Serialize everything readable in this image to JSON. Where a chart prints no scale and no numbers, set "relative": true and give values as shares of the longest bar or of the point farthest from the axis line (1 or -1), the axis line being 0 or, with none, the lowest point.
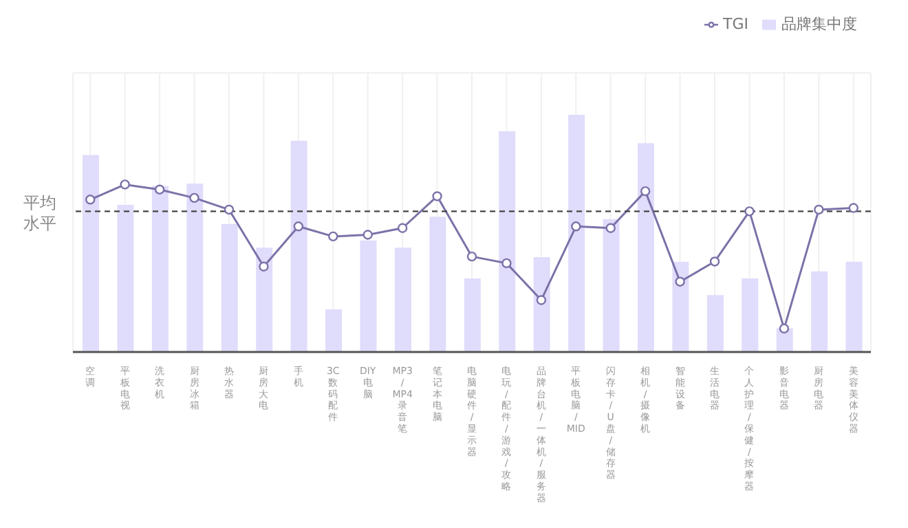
{
  "chart_data": {
    "type": "bar",
    "relative": true,
    "categories": [
      "空调",
      "平板电视",
      "洗衣机",
      "厨房冰箱",
      "热水器",
      "厨房大电",
      "手机",
      "3C数码配件",
      "DIY电脑",
      "MP3/MP4录音笔",
      "笔记本电脑",
      "电脑硬件/显示器",
      "电玩/配件/游戏/攻略",
      "品牌台机/一体机/服务器",
      "平板电脑/MID",
      "闪存卡/U盘/储存器",
      "相机/摄像机",
      "智能设备",
      "生活电器",
      "个人护理/保健/按摩器",
      "影音电器",
      "厨房电器",
      "美容美体仪器"
    ],
    "series": [
      {
        "name": "品牌集中度",
        "color": "#e0dcfb",
        "values": [
          0.83,
          0.62,
          0.7,
          0.71,
          0.54,
          0.44,
          0.89,
          0.18,
          0.47,
          0.44,
          0.57,
          0.31,
          0.93,
          0.4,
          1,
          0.56,
          0.88,
          0.38,
          0.24,
          0.31,
          0.1,
          0.34,
          0.38
        ]
      },
      {
        "name": "TGI",
        "type": "line",
        "axis": "y2",
        "color": "#7b72a8",
        "values": [
          0.91,
          1,
          0.97,
          0.92,
          0.85,
          0.51,
          0.75,
          0.69,
          0.7,
          0.74,
          0.93,
          0.57,
          0.53,
          0.31,
          0.75,
          0.74,
          0.96,
          0.42,
          0.54,
          0.84,
          0.14,
          0.85,
          0.86
        ]
      }
    ],
    "ref_lines": [
      {
        "axis": "y2",
        "value": 0.84,
        "label": "平均水平",
        "color": "#444444",
        "line_style": "dashed"
      }
    ],
    "grid": true,
    "legend": "top right",
    "marker": "circle",
    "line_style": "solid"
  }
}
